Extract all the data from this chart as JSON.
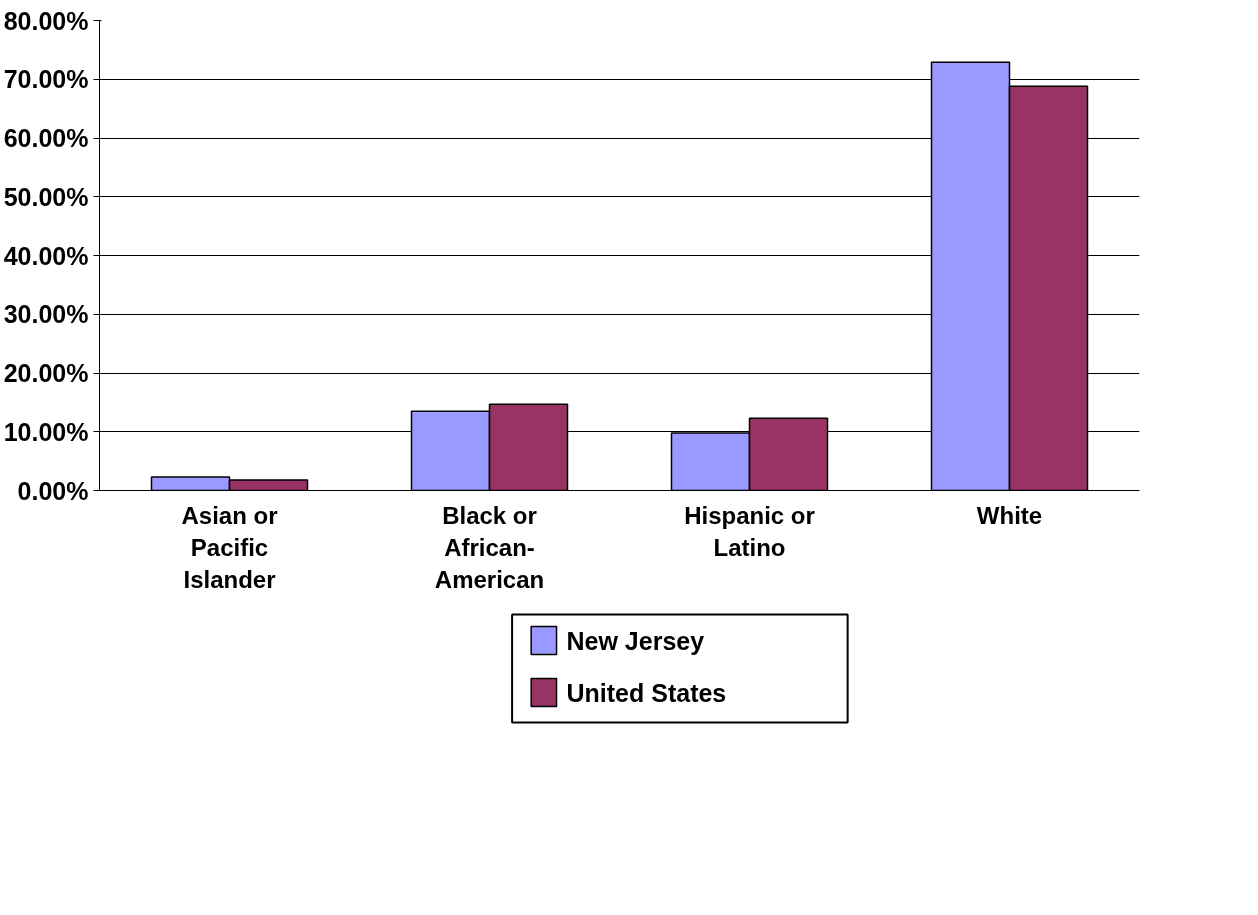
{
  "chart_data": {
    "type": "bar",
    "categories": [
      "Asian or Pacific Islander",
      "Black or African-American",
      "Hispanic or Latino",
      "White"
    ],
    "series": [
      {
        "name": "New Jersey",
        "color": "#9999ff",
        "values": [
          2.3,
          13.5,
          9.8,
          72.9
        ]
      },
      {
        "name": "United States",
        "color": "#993366",
        "values": [
          1.8,
          14.7,
          12.3,
          68.8
        ]
      }
    ],
    "ylim": [
      0,
      80
    ],
    "yticks": [
      {
        "value": 0,
        "label": "0.00%"
      },
      {
        "value": 10,
        "label": "10.00%"
      },
      {
        "value": 20,
        "label": "20.00%"
      },
      {
        "value": 30,
        "label": "30.00%"
      },
      {
        "value": 40,
        "label": "40.00%"
      },
      {
        "value": 50,
        "label": "50.00%"
      },
      {
        "value": 60,
        "label": "60.00%"
      },
      {
        "value": 70,
        "label": "70.00%"
      },
      {
        "value": 80,
        "label": "80.00%"
      }
    ],
    "grid": "y",
    "legend": "bottom"
  }
}
